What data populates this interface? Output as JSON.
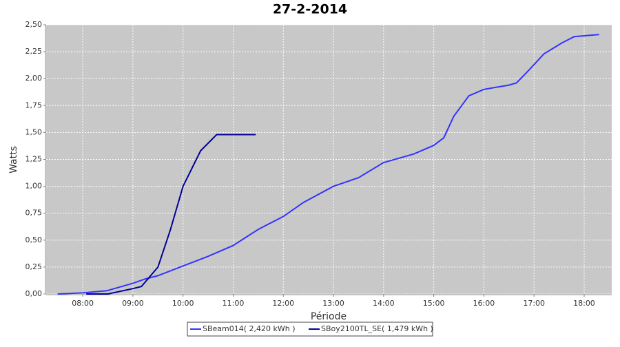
{
  "chart_data": {
    "type": "line",
    "title": "27-2-2014",
    "x_label": "Période",
    "y_label": "Watts",
    "xlim": [
      7.27,
      18.55
    ],
    "ylim": [
      0,
      2.5
    ],
    "xticks": [
      {
        "value": 8,
        "label": "08:00"
      },
      {
        "value": 9,
        "label": "09:00"
      },
      {
        "value": 10,
        "label": "10:00"
      },
      {
        "value": 11,
        "label": "11:00"
      },
      {
        "value": 12,
        "label": "12:00"
      },
      {
        "value": 13,
        "label": "13:00"
      },
      {
        "value": 14,
        "label": "14:00"
      },
      {
        "value": 15,
        "label": "15:00"
      },
      {
        "value": 16,
        "label": "16:00"
      },
      {
        "value": 17,
        "label": "17:00"
      },
      {
        "value": 18,
        "label": "18:00"
      }
    ],
    "yticks": [
      {
        "value": 0,
        "label": "0,00"
      },
      {
        "value": 0.25,
        "label": "0,25"
      },
      {
        "value": 0.5,
        "label": "0,50"
      },
      {
        "value": 0.75,
        "label": "0,75"
      },
      {
        "value": 1,
        "label": "1,00"
      },
      {
        "value": 1.25,
        "label": "1,25"
      },
      {
        "value": 1.5,
        "label": "1,50"
      },
      {
        "value": 1.75,
        "label": "1,75"
      },
      {
        "value": 2,
        "label": "2,00"
      },
      {
        "value": 2.25,
        "label": "2,25"
      },
      {
        "value": 2.5,
        "label": "2,50"
      }
    ],
    "grid": true,
    "legend": "bottom",
    "series": [
      {
        "name": "SBeam014( 2,420 kWh )",
        "color": "#3333ff",
        "x": [
          7.5,
          8.0,
          8.48,
          9.0,
          9.25,
          9.5,
          10.0,
          10.5,
          10.75,
          11.0,
          11.3,
          11.5,
          12.0,
          12.4,
          13.0,
          13.5,
          14.0,
          14.6,
          15.0,
          15.2,
          15.4,
          15.7,
          16.0,
          16.5,
          16.65,
          16.9,
          17.2,
          17.55,
          17.8,
          18.3
        ],
        "values": [
          0,
          0.01,
          0.03,
          0.1,
          0.14,
          0.17,
          0.26,
          0.35,
          0.4,
          0.45,
          0.54,
          0.6,
          0.72,
          0.85,
          1.0,
          1.08,
          1.22,
          1.3,
          1.38,
          1.45,
          1.65,
          1.84,
          1.9,
          1.94,
          1.96,
          2.08,
          2.23,
          2.33,
          2.39,
          2.41
        ]
      },
      {
        "name": "SBoy2100TL_SE( 1,479 kWh )",
        "color": "#000099",
        "x": [
          8.07,
          8.5,
          9.0,
          9.17,
          9.5,
          9.75,
          10.0,
          10.35,
          10.67,
          11.45
        ],
        "values": [
          0,
          0,
          0.05,
          0.07,
          0.25,
          0.6,
          1.0,
          1.33,
          1.48,
          1.48
        ]
      }
    ]
  }
}
